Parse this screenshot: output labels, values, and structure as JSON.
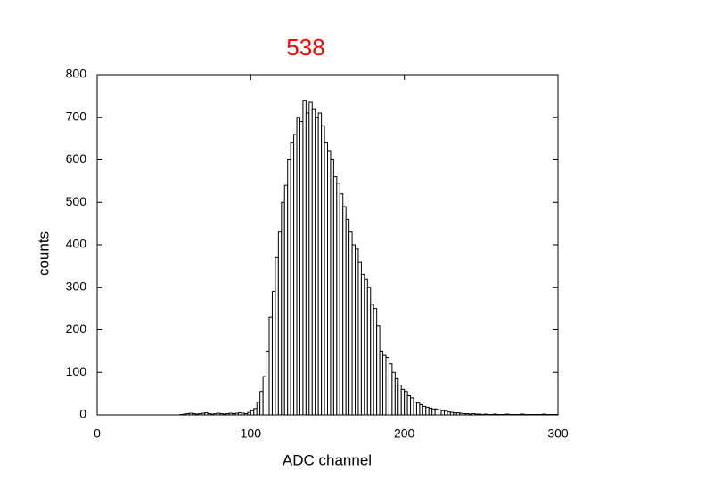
{
  "chart_data": {
    "type": "histogram",
    "title": "538",
    "title_color": "#ff0000",
    "xlabel": "ADC channel",
    "ylabel": "counts",
    "bins": [
      0,
      2,
      4,
      6,
      8,
      10,
      12,
      14,
      16,
      18,
      20,
      22,
      24,
      26,
      28,
      30,
      32,
      34,
      36,
      38,
      40,
      42,
      44,
      46,
      48,
      50,
      52,
      54,
      56,
      58,
      60,
      62,
      64,
      66,
      68,
      70,
      72,
      74,
      76,
      78,
      80,
      82,
      84,
      86,
      88,
      90,
      92,
      94,
      96,
      98,
      100,
      102,
      104,
      106,
      108,
      110,
      112,
      114,
      116,
      118,
      120,
      122,
      124,
      126,
      128,
      130,
      132,
      134,
      136,
      138,
      140,
      142,
      144,
      146,
      148,
      150,
      152,
      154,
      156,
      158,
      160,
      162,
      164,
      166,
      168,
      170,
      172,
      174,
      176,
      178,
      180,
      182,
      184,
      186,
      188,
      190,
      192,
      194,
      196,
      198,
      200,
      202,
      204,
      206,
      208,
      210,
      212,
      214,
      216,
      218,
      220,
      222,
      224,
      226,
      228,
      230,
      232,
      234,
      236,
      238,
      240,
      242,
      244,
      246,
      248,
      250,
      252,
      254,
      256,
      258,
      260,
      262,
      264,
      266,
      268,
      270,
      272,
      274,
      276,
      278,
      280,
      282,
      284,
      286,
      288,
      290,
      292,
      294,
      296,
      298,
      300
    ],
    "values": [
      0,
      0,
      0,
      0,
      0,
      0,
      0,
      0,
      0,
      0,
      0,
      0,
      0,
      0,
      0,
      0,
      0,
      0,
      0,
      0,
      0,
      0,
      0,
      0,
      0,
      0,
      0,
      1,
      2,
      3,
      4,
      3,
      2,
      3,
      4,
      5,
      3,
      2,
      3,
      4,
      3,
      2,
      3,
      4,
      3,
      4,
      5,
      4,
      3,
      6,
      10,
      15,
      30,
      55,
      90,
      150,
      230,
      290,
      370,
      430,
      500,
      540,
      600,
      640,
      660,
      700,
      690,
      740,
      710,
      735,
      720,
      700,
      710,
      680,
      640,
      620,
      600,
      560,
      545,
      520,
      490,
      460,
      430,
      400,
      390,
      360,
      330,
      320,
      300,
      260,
      250,
      210,
      150,
      140,
      135,
      120,
      100,
      85,
      70,
      60,
      55,
      45,
      40,
      30,
      28,
      24,
      20,
      18,
      16,
      14,
      14,
      12,
      10,
      9,
      7,
      6,
      5,
      5,
      4,
      3,
      3,
      2,
      3,
      2,
      2,
      1,
      2,
      1,
      1,
      2,
      1,
      1,
      1,
      2,
      1,
      1,
      1,
      1,
      2,
      1,
      1,
      1,
      1,
      1,
      1,
      2,
      1,
      1,
      1,
      1
    ],
    "color": "#000000",
    "xlim": [
      0,
      300
    ],
    "xticks": [
      0,
      100,
      200,
      300
    ],
    "ylim": [
      0,
      800
    ],
    "yticks": [
      0,
      100,
      200,
      300,
      400,
      500,
      600,
      700,
      800
    ]
  }
}
